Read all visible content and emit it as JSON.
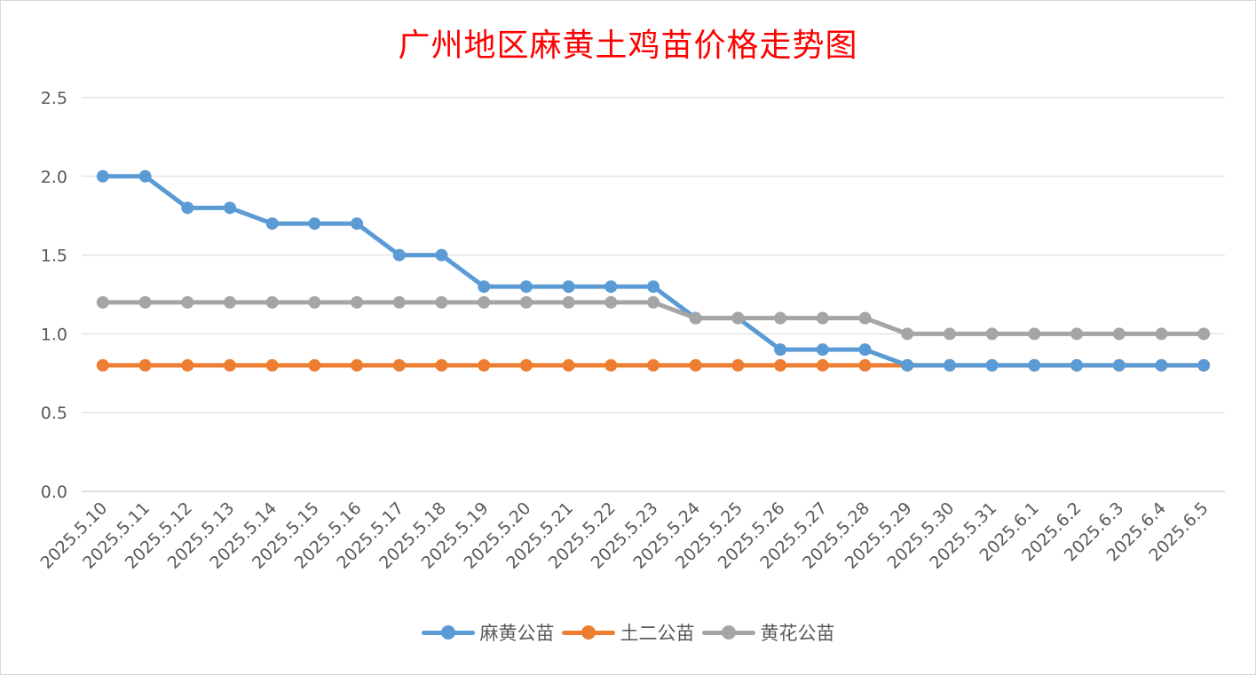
{
  "chart_data": {
    "type": "line",
    "title": "广州地区麻黄土鸡苗价格走势图",
    "categories": [
      "2025.5.10",
      "2025.5.11",
      "2025.5.12",
      "2025.5.13",
      "2025.5.14",
      "2025.5.15",
      "2025.5.16",
      "2025.5.17",
      "2025.5.18",
      "2025.5.19",
      "2025.5.20",
      "2025.5.21",
      "2025.5.22",
      "2025.5.23",
      "2025.5.24",
      "2025.5.25",
      "2025.5.26",
      "2025.5.27",
      "2025.5.28",
      "2025.5.29",
      "2025.5.30",
      "2025.5.31",
      "2025.6.1",
      "2025.6.2",
      "2025.6.3",
      "2025.6.4",
      "2025.6.5"
    ],
    "series": [
      {
        "name": "麻黄公苗",
        "color": "#5b9bd5",
        "values": [
          2.0,
          2.0,
          1.8,
          1.8,
          1.7,
          1.7,
          1.7,
          1.5,
          1.5,
          1.3,
          1.3,
          1.3,
          1.3,
          1.3,
          1.1,
          1.1,
          0.9,
          0.9,
          0.9,
          0.8,
          0.8,
          0.8,
          0.8,
          0.8,
          0.8,
          0.8,
          0.8
        ]
      },
      {
        "name": "土二公苗",
        "color": "#ed7d31",
        "values": [
          0.8,
          0.8,
          0.8,
          0.8,
          0.8,
          0.8,
          0.8,
          0.8,
          0.8,
          0.8,
          0.8,
          0.8,
          0.8,
          0.8,
          0.8,
          0.8,
          0.8,
          0.8,
          0.8,
          0.8,
          0.8,
          0.8,
          0.8,
          0.8,
          0.8,
          0.8,
          0.8
        ]
      },
      {
        "name": "黄花公苗",
        "color": "#a5a5a5",
        "values": [
          1.2,
          1.2,
          1.2,
          1.2,
          1.2,
          1.2,
          1.2,
          1.2,
          1.2,
          1.2,
          1.2,
          1.2,
          1.2,
          1.2,
          1.1,
          1.1,
          1.1,
          1.1,
          1.1,
          1.0,
          1.0,
          1.0,
          1.0,
          1.0,
          1.0,
          1.0,
          1.0
        ]
      }
    ],
    "yticks": [
      "0.0",
      "0.5",
      "1.0",
      "1.5",
      "2.0",
      "2.5"
    ],
    "ylim": [
      0,
      2.5
    ],
    "grid": true,
    "legend": "bottom"
  }
}
